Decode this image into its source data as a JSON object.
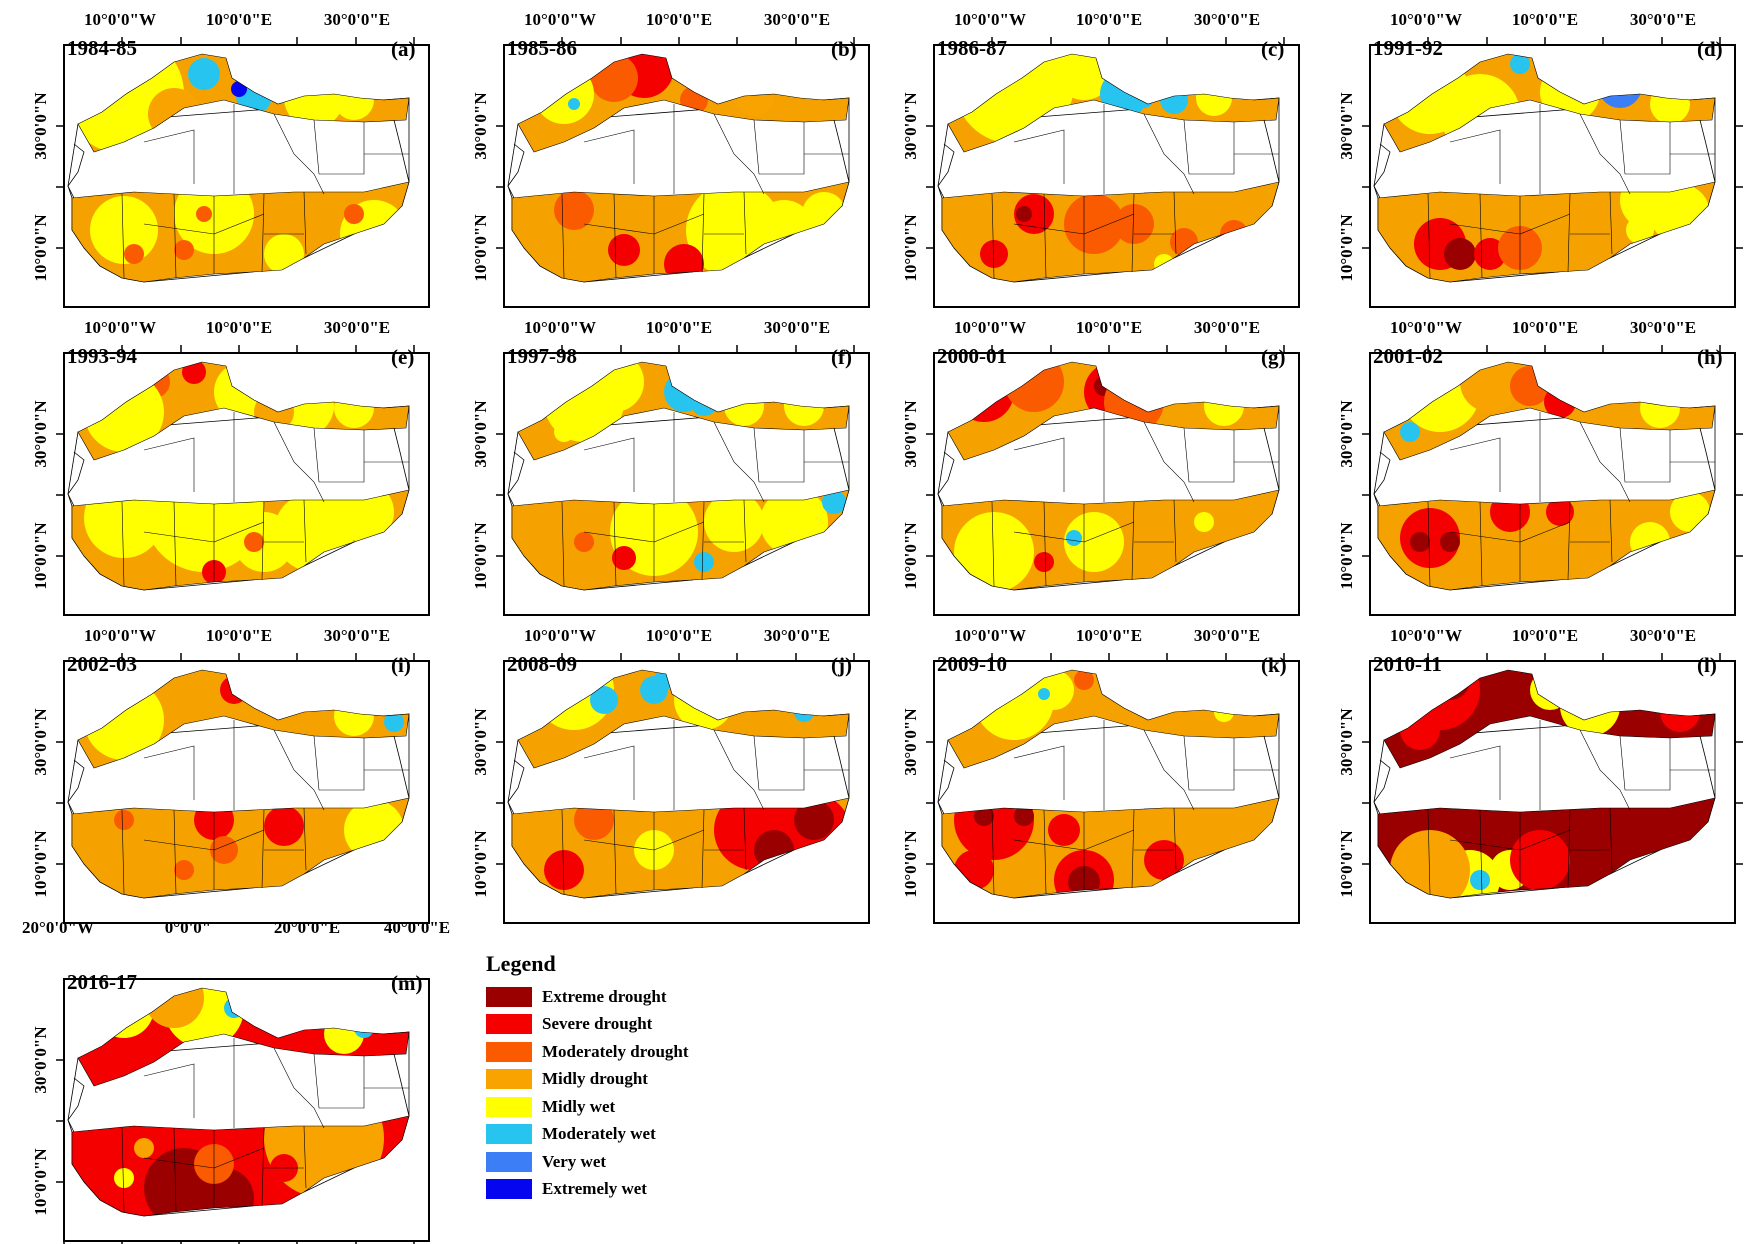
{
  "figure": {
    "top_tick_labels": [
      "10°0'0\"W",
      "10°0'0\"E",
      "30°0'0\"E"
    ],
    "bottom_tick_labels": [
      "20°0'0\"W",
      "0°0'0\"",
      "20°0'0\"E",
      "40°0'0\"E"
    ],
    "lat_labels": [
      "30°0'0\"N",
      "10°0'0\"N"
    ],
    "panels": [
      {
        "letter": "(a)",
        "year": "1984-85",
        "base": "#f5a200",
        "pattern": "a"
      },
      {
        "letter": "(b)",
        "year": "1985-86",
        "base": "#f5a200",
        "pattern": "b"
      },
      {
        "letter": "(c)",
        "year": "1986-87",
        "base": "#f5a200",
        "pattern": "c"
      },
      {
        "letter": "(d)",
        "year": "1991-92",
        "base": "#f5a200",
        "pattern": "d"
      },
      {
        "letter": "(e)",
        "year": "1993-94",
        "base": "#f5a200",
        "pattern": "e"
      },
      {
        "letter": "(f)",
        "year": "1997-98",
        "base": "#f5a200",
        "pattern": "f"
      },
      {
        "letter": "(g)",
        "year": "2000-01",
        "base": "#f5a200",
        "pattern": "g"
      },
      {
        "letter": "(h)",
        "year": "2001-02",
        "base": "#f5a200",
        "pattern": "h"
      },
      {
        "letter": "(i)",
        "year": "2002-03",
        "base": "#f5a200",
        "pattern": "i"
      },
      {
        "letter": "(j)",
        "year": "2008-09",
        "base": "#f5a200",
        "pattern": "j"
      },
      {
        "letter": "(k)",
        "year": "2009-10",
        "base": "#f5a200",
        "pattern": "k"
      },
      {
        "letter": "(l)",
        "year": "2010-11",
        "base": "#9b0000",
        "pattern": "l"
      },
      {
        "letter": "(m)",
        "year": "2016-17",
        "base": "#f40000",
        "pattern": "m"
      }
    ]
  },
  "legend": {
    "title": "Legend",
    "items": [
      {
        "label": "Extreme drought",
        "color": "#9b0000"
      },
      {
        "label": "Severe drought",
        "color": "#f40000"
      },
      {
        "label": "Moderately drought",
        "color": "#fa5a00"
      },
      {
        "label": "Midly drought",
        "color": "#f8a300"
      },
      {
        "label": "Midly wet",
        "color": "#ffff00"
      },
      {
        "label": "Moderately wet",
        "color": "#27c4f0"
      },
      {
        "label": "Very wet",
        "color": "#3b7ef6"
      },
      {
        "label": "Extremely wet",
        "color": "#0505f0"
      }
    ]
  },
  "colors": {
    "extreme": "#9b0000",
    "severe": "#f40000",
    "moderate": "#fa5a00",
    "mild": "#f8a300",
    "wet": "#ffff00",
    "modwet": "#27c4f0",
    "verywet": "#3b7ef6",
    "extwet": "#0505f0"
  }
}
